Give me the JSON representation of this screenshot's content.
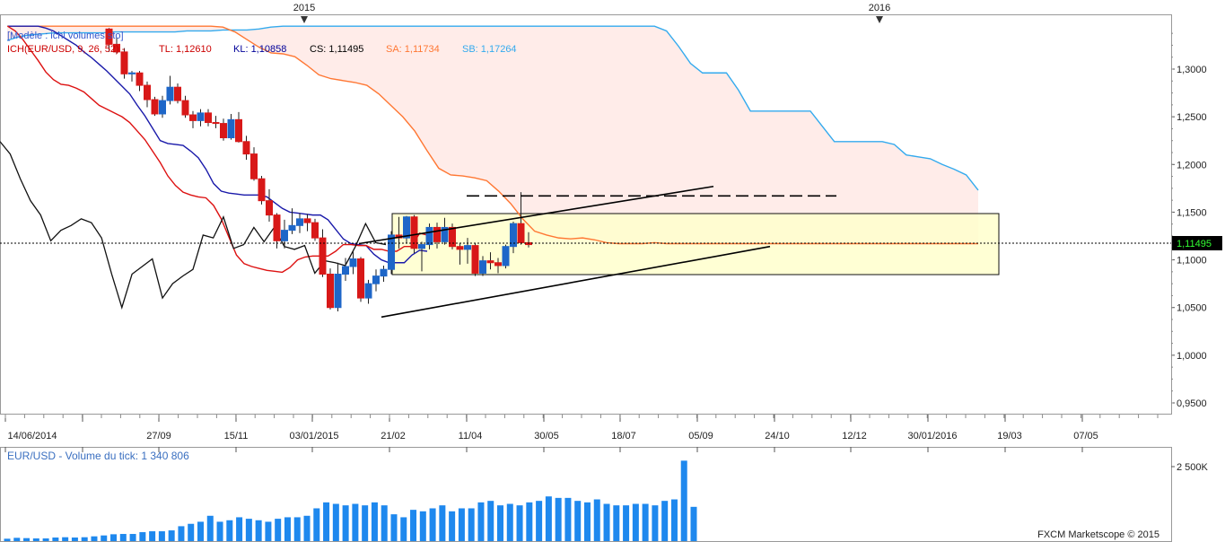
{
  "chart_data": [
    {
      "type": "candlestick",
      "model_label": "[Modèle : ichi volumes sto]",
      "legend": {
        "ich": "ICH(EUR/USD, 9, 26, 52) -",
        "tl": "TL: 1,12610",
        "kl": "KL: 1,10858",
        "cs": "CS: 1,11495",
        "sa": "SA: 1,11734",
        "sb": "SB: 1,17264"
      },
      "years": [
        "2015",
        "2016"
      ],
      "current_price": "1,11495",
      "ylim": [
        0.92,
        1.345
      ],
      "y_ticks": [
        "1,3000",
        "1,2500",
        "1,2000",
        "1,1500",
        "1,1000",
        "1,0500",
        "1,0000",
        "0,9500"
      ],
      "y_tick_values": [
        1.3,
        1.25,
        1.2,
        1.15,
        1.1,
        1.05,
        1.0,
        0.95
      ],
      "x_ticks": [
        "14/06/2014",
        "27/09",
        "15/11",
        "03/01/2015",
        "21/02",
        "11/04",
        "30/05",
        "18/07",
        "05/09",
        "24/10",
        "12/12",
        "30/01/2016",
        "19/03",
        "07/05"
      ],
      "candles": [
        [
          1.342,
          1.343,
          1.318,
          1.326
        ],
        [
          1.326,
          1.333,
          1.316,
          1.318
        ],
        [
          1.318,
          1.322,
          1.29,
          1.295
        ],
        [
          1.295,
          1.298,
          1.287,
          1.296
        ],
        [
          1.296,
          1.298,
          1.277,
          1.283
        ],
        [
          1.283,
          1.287,
          1.26,
          1.268
        ],
        [
          1.268,
          1.271,
          1.251,
          1.253
        ],
        [
          1.253,
          1.272,
          1.249,
          1.267
        ],
        [
          1.267,
          1.293,
          1.263,
          1.281
        ],
        [
          1.281,
          1.285,
          1.264,
          1.267
        ],
        [
          1.267,
          1.272,
          1.249,
          1.252
        ],
        [
          1.252,
          1.256,
          1.238,
          1.246
        ],
        [
          1.246,
          1.258,
          1.24,
          1.254
        ],
        [
          1.254,
          1.258,
          1.24,
          1.244
        ],
        [
          1.244,
          1.251,
          1.238,
          1.243
        ],
        [
          1.243,
          1.248,
          1.225,
          1.228
        ],
        [
          1.228,
          1.253,
          1.226,
          1.247
        ],
        [
          1.247,
          1.255,
          1.223,
          1.224
        ],
        [
          1.224,
          1.23,
          1.205,
          1.211
        ],
        [
          1.211,
          1.218,
          1.183,
          1.185
        ],
        [
          1.185,
          1.188,
          1.158,
          1.162
        ],
        [
          1.162,
          1.174,
          1.14,
          1.147
        ],
        [
          1.147,
          1.149,
          1.112,
          1.12
        ],
        [
          1.12,
          1.142,
          1.112,
          1.131
        ],
        [
          1.131,
          1.154,
          1.127,
          1.136
        ],
        [
          1.136,
          1.149,
          1.128,
          1.143
        ],
        [
          1.143,
          1.148,
          1.13,
          1.139
        ],
        [
          1.139,
          1.143,
          1.12,
          1.123
        ],
        [
          1.123,
          1.132,
          1.082,
          1.085
        ],
        [
          1.085,
          1.091,
          1.048,
          1.05
        ],
        [
          1.05,
          1.097,
          1.046,
          1.085
        ],
        [
          1.085,
          1.102,
          1.078,
          1.093
        ],
        [
          1.093,
          1.109,
          1.085,
          1.101
        ],
        [
          1.101,
          1.103,
          1.056,
          1.06
        ],
        [
          1.06,
          1.079,
          1.054,
          1.075
        ],
        [
          1.075,
          1.09,
          1.067,
          1.083
        ],
        [
          1.083,
          1.094,
          1.077,
          1.09
        ],
        [
          1.09,
          1.13,
          1.085,
          1.126
        ],
        [
          1.126,
          1.145,
          1.112,
          1.123
        ],
        [
          1.123,
          1.146,
          1.118,
          1.145
        ],
        [
          1.145,
          1.147,
          1.107,
          1.112
        ],
        [
          1.112,
          1.119,
          1.088,
          1.116
        ],
        [
          1.116,
          1.138,
          1.111,
          1.134
        ],
        [
          1.134,
          1.139,
          1.112,
          1.119
        ],
        [
          1.119,
          1.144,
          1.116,
          1.134
        ],
        [
          1.134,
          1.138,
          1.111,
          1.114
        ],
        [
          1.114,
          1.117,
          1.095,
          1.111
        ],
        [
          1.111,
          1.123,
          1.096,
          1.115
        ],
        [
          1.115,
          1.118,
          1.083,
          1.086
        ],
        [
          1.086,
          1.104,
          1.083,
          1.099
        ],
        [
          1.099,
          1.108,
          1.09,
          1.097
        ],
        [
          1.097,
          1.102,
          1.086,
          1.094
        ],
        [
          1.094,
          1.116,
          1.091,
          1.114
        ],
        [
          1.114,
          1.14,
          1.107,
          1.138
        ],
        [
          1.138,
          1.171,
          1.116,
          1.118
        ],
        [
          1.118,
          1.129,
          1.113,
          1.116
        ]
      ],
      "tenkan_line": [
        1.345,
        1.34,
        1.331,
        1.32,
        1.309,
        1.297,
        1.289,
        1.284,
        1.283,
        1.28,
        1.276,
        1.269,
        1.262,
        1.258,
        1.254,
        1.25,
        1.244,
        1.235,
        1.226,
        1.214,
        1.202,
        1.188,
        1.178,
        1.171,
        1.168,
        1.166,
        1.165,
        1.157,
        1.143,
        1.124,
        1.105,
        1.096,
        1.093,
        1.091,
        1.089,
        1.088,
        1.087,
        1.092,
        1.1,
        1.103,
        1.104,
        1.104,
        1.104,
        1.109,
        1.116,
        1.116,
        1.115,
        1.115,
        1.111,
        1.111,
        1.109,
        1.109,
        1.114,
        1.114,
        1.128,
        1.126
      ],
      "kijun_line": [
        1.345,
        1.345,
        1.345,
        1.345,
        1.345,
        1.343,
        1.34,
        1.335,
        1.33,
        1.325,
        1.318,
        1.312,
        1.305,
        1.298,
        1.29,
        1.282,
        1.274,
        1.262,
        1.251,
        1.238,
        1.225,
        1.222,
        1.221,
        1.22,
        1.214,
        1.207,
        1.195,
        1.18,
        1.172,
        1.17,
        1.169,
        1.168,
        1.168,
        1.168,
        1.166,
        1.16,
        1.154,
        1.15,
        1.149,
        1.148,
        1.147,
        1.147,
        1.142,
        1.132,
        1.122,
        1.117,
        1.116,
        1.115,
        1.106,
        1.1,
        1.097,
        1.097,
        1.097,
        1.105,
        1.11,
        1.109
      ],
      "senkou_a": [
        1.345,
        1.345,
        1.345,
        1.345,
        1.345,
        1.345,
        1.345,
        1.345,
        1.345,
        1.345,
        1.345,
        1.345,
        1.345,
        1.345,
        1.345,
        1.345,
        1.345,
        1.345,
        1.344,
        1.339,
        1.331,
        1.323,
        1.317,
        1.316,
        1.313,
        1.304,
        1.294,
        1.29,
        1.288,
        1.286,
        1.283,
        1.274,
        1.262,
        1.25,
        1.235,
        1.215,
        1.196,
        1.189,
        1.188,
        1.186,
        1.183,
        1.172,
        1.159,
        1.143,
        1.13,
        1.126,
        1.123,
        1.122,
        1.123,
        1.121,
        1.118,
        1.117,
        1.117,
        1.117,
        1.118,
        1.117,
        1.117,
        1.117,
        1.117,
        1.117,
        1.117,
        1.117,
        1.117,
        1.117,
        1.117,
        1.117,
        1.117,
        1.117,
        1.117,
        1.117,
        1.117,
        1.117,
        1.117,
        1.117,
        1.117,
        1.117,
        1.117,
        1.117,
        1.117,
        1.117,
        1.117,
        1.117
      ],
      "senkou_b": [
        1.33,
        1.334,
        1.336,
        1.337,
        1.338,
        1.338,
        1.338,
        1.338,
        1.338,
        1.339,
        1.339,
        1.339,
        1.339,
        1.339,
        1.339,
        1.34,
        1.34,
        1.34,
        1.341,
        1.341,
        1.341,
        1.342,
        1.344,
        1.345,
        1.345,
        1.345,
        1.345,
        1.345,
        1.345,
        1.345,
        1.345,
        1.345,
        1.345,
        1.345,
        1.345,
        1.345,
        1.345,
        1.345,
        1.345,
        1.345,
        1.345,
        1.345,
        1.345,
        1.345,
        1.345,
        1.345,
        1.345,
        1.345,
        1.345,
        1.345,
        1.345,
        1.345,
        1.345,
        1.345,
        1.345,
        1.34,
        1.324,
        1.306,
        1.296,
        1.296,
        1.296,
        1.278,
        1.256,
        1.256,
        1.256,
        1.256,
        1.256,
        1.256,
        1.24,
        1.224,
        1.224,
        1.224,
        1.224,
        1.224,
        1.221,
        1.21,
        1.208,
        1.206,
        1.2,
        1.195,
        1.189,
        1.173
      ],
      "chikou": [
        1.224,
        1.211,
        1.185,
        1.162,
        1.147,
        1.12,
        1.131,
        1.136,
        1.143,
        1.139,
        1.123,
        1.085,
        1.05,
        1.085,
        1.093,
        1.101,
        1.06,
        1.075,
        1.083,
        1.09,
        1.126,
        1.123,
        1.145,
        1.112,
        1.116,
        1.134,
        1.119,
        1.134,
        1.114,
        1.111,
        1.115,
        1.086,
        1.099,
        1.097,
        1.094,
        1.114,
        1.138,
        1.118,
        1.116
      ],
      "volume_label": "EUR/USD - Volume du tick: 1 340 806",
      "volume_tick": "2 500K",
      "volume_ylim": [
        0,
        2800
      ],
      "volumes": [
        80,
        110,
        100,
        90,
        90,
        120,
        130,
        120,
        130,
        160,
        190,
        230,
        240,
        240,
        300,
        330,
        330,
        360,
        500,
        580,
        650,
        850,
        650,
        700,
        800,
        750,
        700,
        650,
        750,
        800,
        800,
        850,
        1100,
        1300,
        1250,
        1200,
        1250,
        1200,
        1300,
        1200,
        900,
        800,
        1050,
        1000,
        1100,
        1200,
        1000,
        1100,
        1100,
        1300,
        1350,
        1200,
        1250,
        1200,
        1300,
        1350,
        1500,
        1450,
        1450,
        1350,
        1300,
        1400,
        1250,
        1200,
        1200,
        1250,
        1250,
        1200,
        1350,
        1400,
        2700,
        1150
      ],
      "annotations": {
        "resistance_level": 1.167,
        "zone": [
          1.084,
          1.148
        ],
        "wedge_upper": [
          [
            1.117,
            1.177
          ]
        ],
        "wedge_lower": [
          [
            1.04,
            1.114
          ]
        ]
      },
      "footer": "FXCM Marketscope © 2015"
    }
  ]
}
